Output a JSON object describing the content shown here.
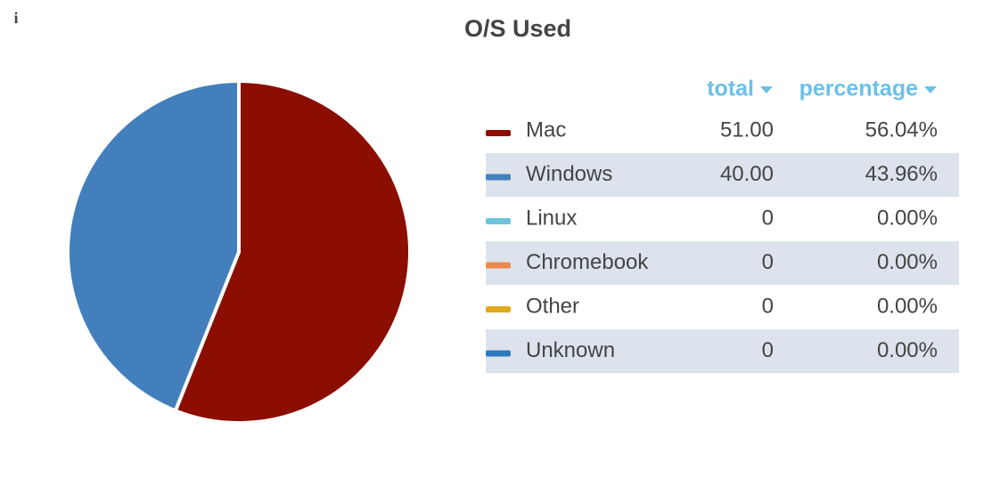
{
  "icon": "i",
  "chart_data": {
    "type": "pie",
    "title": "O/S Used",
    "categories": [
      "Mac",
      "Windows",
      "Linux",
      "Chromebook",
      "Other",
      "Unknown"
    ],
    "colors": [
      "#8b0e00",
      "#447fbd",
      "#6cc5d9",
      "#ee8a4e",
      "#e0ab1a",
      "#2a79c1"
    ],
    "series": [
      {
        "name": "total",
        "values": [
          51,
          40,
          0,
          0,
          0,
          0
        ],
        "value_labels": [
          "51.00",
          "40.00",
          "0",
          "0",
          "0",
          "0"
        ]
      },
      {
        "name": "percentage",
        "values": [
          56.04,
          43.96,
          0,
          0,
          0,
          0
        ],
        "value_labels": [
          "56.04%",
          "43.96%",
          "0.00%",
          "0.00%",
          "0.00%",
          "0.00%"
        ]
      }
    ]
  }
}
